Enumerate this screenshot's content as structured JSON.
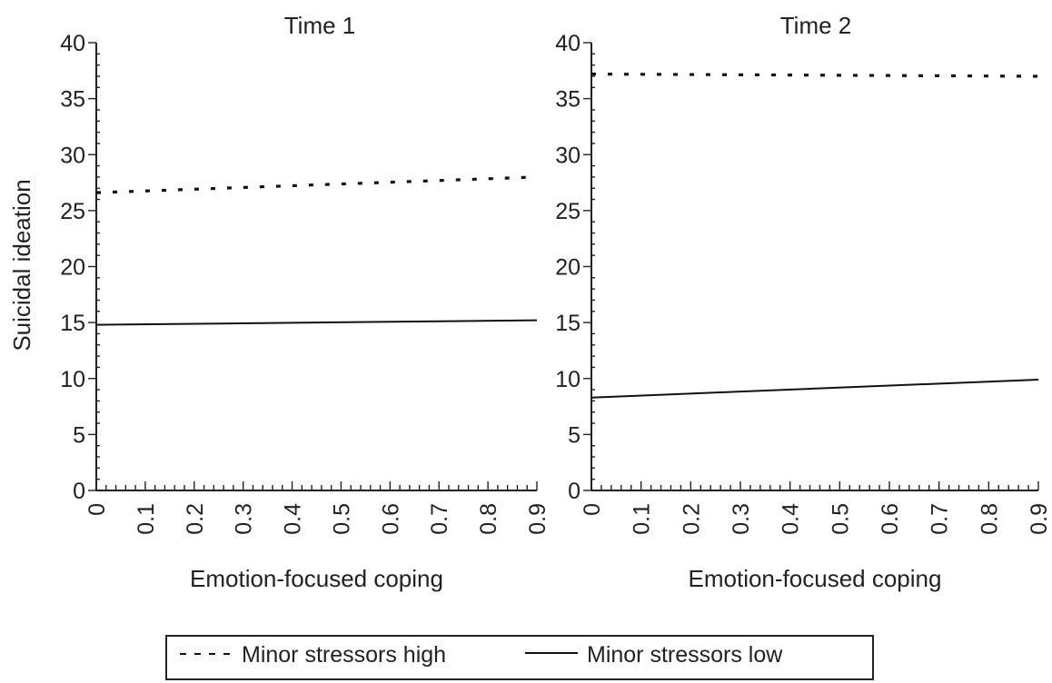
{
  "chart_data": [
    {
      "type": "line",
      "title": "Time 1",
      "xlabel": "Emotion-focused coping",
      "ylabel": "Suicidal ideation",
      "xlim": [
        0,
        0.9
      ],
      "ylim": [
        0,
        40
      ],
      "x_ticks": [
        "0",
        "0.1",
        "0.2",
        "0.3",
        "0.4",
        "0.5",
        "0.6",
        "0.7",
        "0.8",
        "0.9"
      ],
      "y_ticks": [
        "0",
        "5",
        "10",
        "15",
        "20",
        "25",
        "30",
        "35",
        "40"
      ],
      "series": [
        {
          "name": "Minor stressors high",
          "style": "dashed",
          "x": [
            0,
            0.9
          ],
          "y": [
            26.6,
            28.0
          ]
        },
        {
          "name": "Minor stressors low",
          "style": "solid",
          "x": [
            0,
            0.9
          ],
          "y": [
            14.8,
            15.2
          ]
        }
      ]
    },
    {
      "type": "line",
      "title": "Time 2",
      "xlabel": "Emotion-focused coping",
      "ylabel": "",
      "xlim": [
        0,
        0.9
      ],
      "ylim": [
        0,
        40
      ],
      "x_ticks": [
        "0",
        "0.1",
        "0.2",
        "0.3",
        "0.4",
        "0.5",
        "0.6",
        "0.7",
        "0.8",
        "0.9"
      ],
      "y_ticks": [
        "0",
        "5",
        "10",
        "15",
        "20",
        "25",
        "30",
        "35",
        "40"
      ],
      "series": [
        {
          "name": "Minor stressors high",
          "style": "dashed",
          "x": [
            0,
            0.9
          ],
          "y": [
            37.2,
            37.0
          ]
        },
        {
          "name": "Minor stressors low",
          "style": "solid",
          "x": [
            0,
            0.9
          ],
          "y": [
            8.3,
            9.9
          ]
        }
      ]
    }
  ],
  "legend": {
    "high_label": "Minor stressors high",
    "low_label": "Minor stressors low",
    "placement": "bottom-center"
  }
}
